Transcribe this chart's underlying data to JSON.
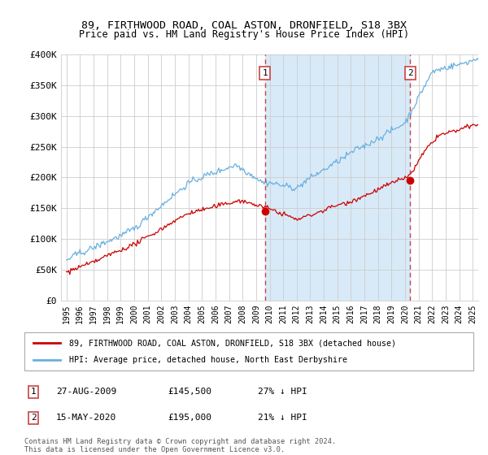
{
  "title": "89, FIRTHWOOD ROAD, COAL ASTON, DRONFIELD, S18 3BX",
  "subtitle": "Price paid vs. HM Land Registry's House Price Index (HPI)",
  "sale1_date": "27-AUG-2009",
  "sale1_price": 145500,
  "sale1_pct": "27% ↓ HPI",
  "sale1_label": "1",
  "sale1_year": 2009.65,
  "sale2_date": "15-MAY-2020",
  "sale2_price": 195000,
  "sale2_pct": "21% ↓ HPI",
  "sale2_label": "2",
  "sale2_year": 2020.37,
  "legend_red": "89, FIRTHWOOD ROAD, COAL ASTON, DRONFIELD, S18 3BX (detached house)",
  "legend_blue": "HPI: Average price, detached house, North East Derbyshire",
  "footnote": "Contains HM Land Registry data © Crown copyright and database right 2024.\nThis data is licensed under the Open Government Licence v3.0.",
  "hpi_color": "#6ab0e0",
  "price_color": "#cc0000",
  "dashed_color": "#cc4444",
  "shade_color": "#d8eaf8",
  "ylim": [
    0,
    400000
  ],
  "yticks": [
    0,
    50000,
    100000,
    150000,
    200000,
    250000,
    300000,
    350000,
    400000
  ],
  "xlim_start": 1994.6,
  "xlim_end": 2025.4
}
